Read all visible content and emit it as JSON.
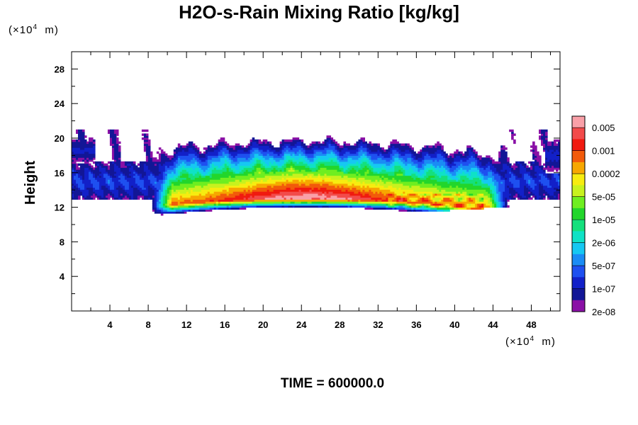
{
  "chart_data": {
    "type": "heatmap",
    "title": "H2O-s-Rain Mixing Ratio [kg/kg]",
    "ylabel": "Height",
    "xlabel": "",
    "x_unit": "(×10⁴ m)",
    "y_unit": "(×10⁴ m)",
    "xlim": [
      0,
      51
    ],
    "ylim": [
      0,
      30
    ],
    "x_ticks": [
      "4",
      "8",
      "12",
      "16",
      "20",
      "24",
      "28",
      "32",
      "36",
      "40",
      "44",
      "48"
    ],
    "y_ticks": [
      "4",
      "8",
      "12",
      "16",
      "20",
      "24",
      "28"
    ],
    "footer": "TIME = 600000.0",
    "field": {
      "description_units": "kg/kg",
      "base_height": 12.3,
      "peak_x": 24.5,
      "peak_height": 13.1
    },
    "colorbar": {
      "colors": [
        "#f9a0a8",
        "#f24b4b",
        "#f01a10",
        "#f25a0a",
        "#f7a700",
        "#f7ec10",
        "#c8f21e",
        "#6fee20",
        "#22d62b",
        "#14e07d",
        "#0fe2c6",
        "#16c8f2",
        "#1a8cf5",
        "#1e50f0",
        "#1220c8",
        "#121696",
        "#8a10a6"
      ],
      "labels": [
        "0.005",
        "0.001",
        "0.0002",
        "5e-05",
        "1e-05",
        "2e-06",
        "5e-07",
        "1e-07",
        "2e-08"
      ]
    }
  }
}
